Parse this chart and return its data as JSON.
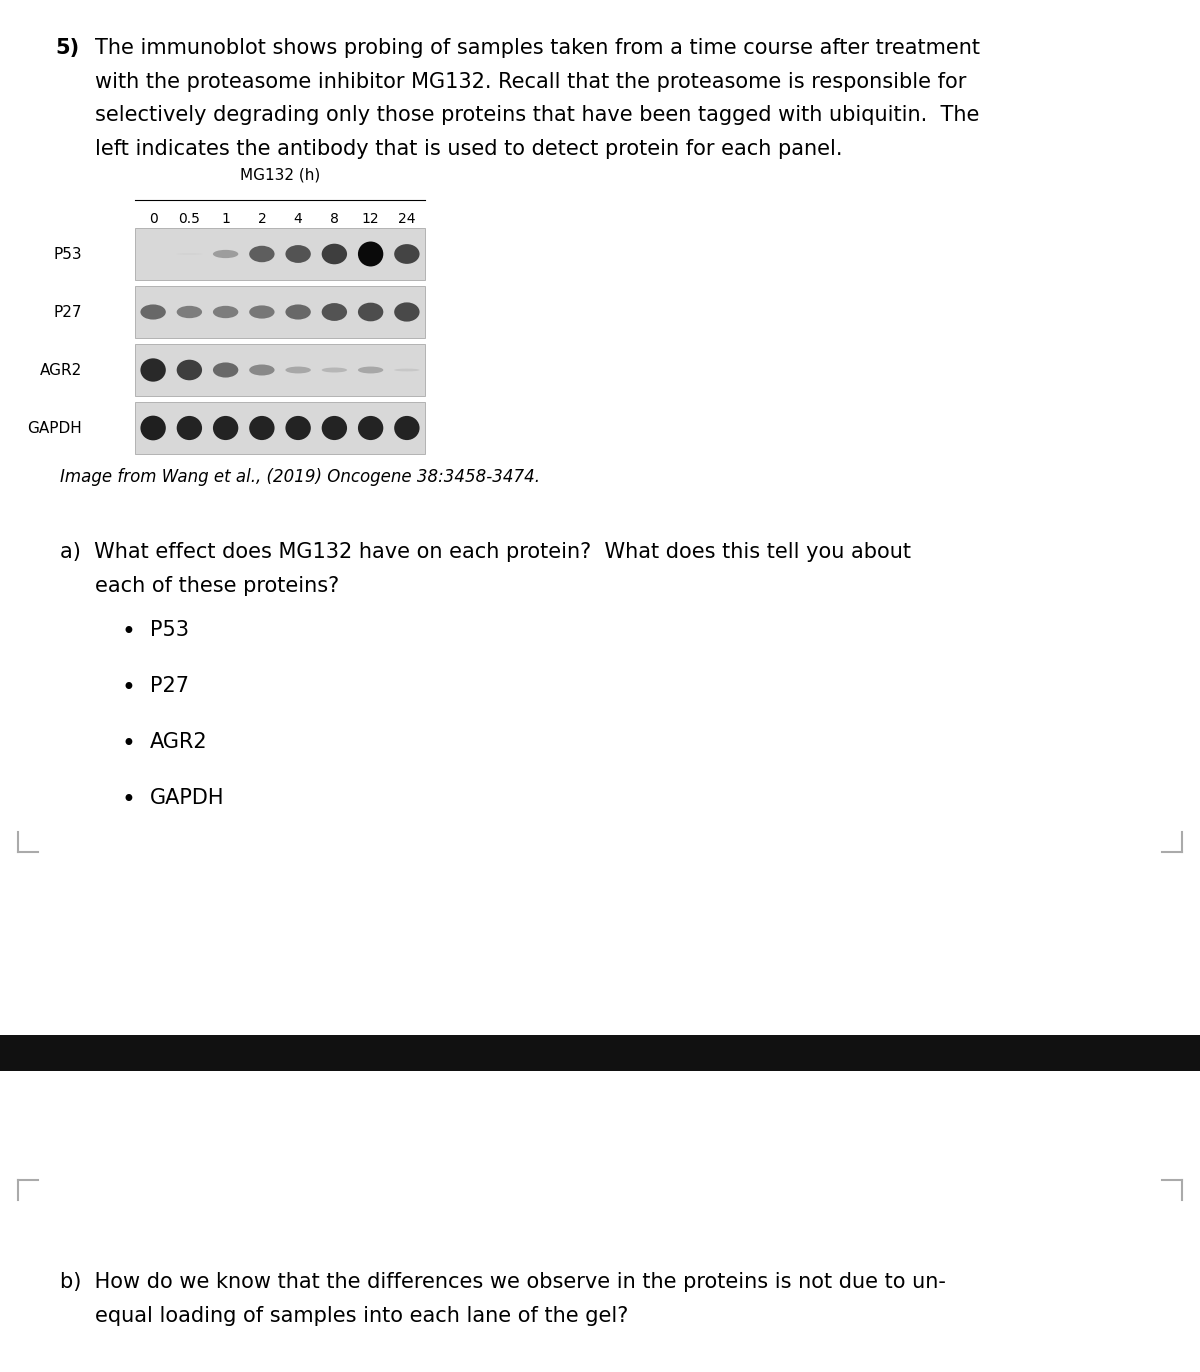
{
  "bg_color": "#ffffff",
  "page_width": 12.0,
  "page_height": 13.72,
  "question_number": "5)",
  "question_lines": [
    "The immunoblot shows probing of samples taken from a time course after treatment",
    "with the proteasome inhibitor MG132. Recall that the proteasome is responsible for",
    "selectively degrading only those proteins that have been tagged with ubiquitin.  The",
    "left indicates the antibody that is used to detect protein for each panel."
  ],
  "blot_title": "MG132 (h)",
  "time_points": [
    "0",
    "0.5",
    "1",
    "2",
    "4",
    "8",
    "12",
    "24"
  ],
  "proteins": [
    "P53",
    "P27",
    "AGR2",
    "GAPDH"
  ],
  "band_intensities": {
    "P53": [
      0.02,
      0.05,
      0.3,
      0.6,
      0.65,
      0.75,
      1.0,
      0.72
    ],
    "P27": [
      0.55,
      0.45,
      0.45,
      0.48,
      0.55,
      0.65,
      0.68,
      0.7
    ],
    "AGR2": [
      0.85,
      0.75,
      0.55,
      0.4,
      0.25,
      0.18,
      0.25,
      0.1
    ],
    "GAPDH": [
      0.9,
      0.88,
      0.88,
      0.88,
      0.88,
      0.88,
      0.88,
      0.88
    ]
  },
  "panel_bg": "#d8d8d8",
  "panel_edge": "#aaaaaa",
  "citation": "Image from Wang et al., (2019) Oncogene 38:3458-3474.",
  "part_a_lines": [
    "a)  What effect does MG132 have on each protein?  What does this tell you about",
    "each of these proteins?"
  ],
  "bullet_items": [
    "P53",
    "P27",
    "AGR2",
    "GAPDH"
  ],
  "part_b_lines": [
    "b)  How do we know that the differences we observe in the proteins is not due to un-",
    "equal loading of samples into each lane of the gel?"
  ],
  "black_bar_color": "#111111",
  "font_size_main": 15,
  "font_size_blot_label": 11,
  "font_size_blot_tick": 10,
  "font_family": "DejaVu Sans"
}
